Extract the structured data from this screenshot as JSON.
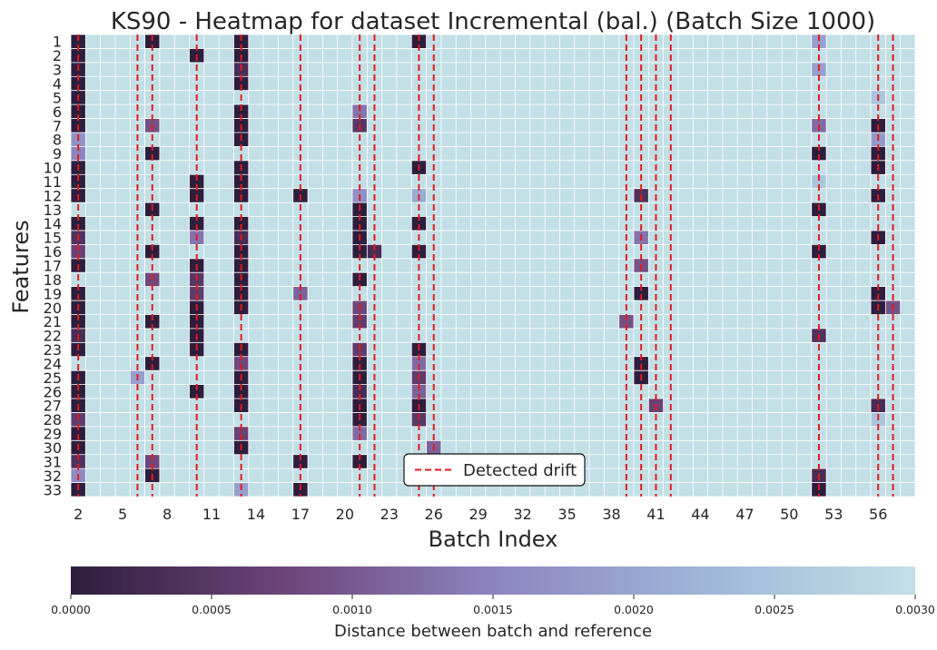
{
  "chart_data": {
    "type": "heatmap",
    "title": "KS90 - Heatmap for dataset Incremental (bal.) (Batch Size 1000)",
    "xlabel": "Batch Index",
    "ylabel": "Features",
    "x_start": 2,
    "x_end": 58,
    "x_ticks": [
      2,
      5,
      8,
      11,
      14,
      17,
      20,
      23,
      26,
      29,
      32,
      35,
      38,
      41,
      44,
      47,
      50,
      53,
      56
    ],
    "y_labels": [
      "1",
      "2",
      "3",
      "4",
      "5",
      "6",
      "7",
      "8",
      "9",
      "10",
      "11",
      "12",
      "13",
      "14",
      "15",
      "16",
      "17",
      "18",
      "19",
      "20",
      "21",
      "22",
      "23",
      "24",
      "25",
      "26",
      "27",
      "28",
      "29",
      "30",
      "31",
      "32",
      "33"
    ],
    "colorbar": {
      "label": "Distance between batch and reference",
      "range": [
        0,
        0.003
      ],
      "ticks": [
        "0.0000",
        "0.0005",
        "0.0010",
        "0.0015",
        "0.0020",
        "0.0025",
        "0.0030"
      ],
      "colors": [
        "#2d1e3e",
        "#6e4478",
        "#8c84c0",
        "#9eb6d8",
        "#c3dfe6"
      ]
    },
    "background_value": 0.003,
    "detected_drift_batches": [
      2,
      6,
      7,
      10,
      13,
      17,
      21,
      22,
      25,
      26,
      39,
      40,
      41,
      42,
      52,
      56,
      57
    ],
    "legend": {
      "label": "Detected drift",
      "position": "bottom-center",
      "color": "#e31a1c"
    },
    "cells": [
      {
        "feature": 1,
        "batch": 2,
        "value": 0.0
      },
      {
        "feature": 1,
        "batch": 7,
        "value": 0.0
      },
      {
        "feature": 1,
        "batch": 13,
        "value": 0.0
      },
      {
        "feature": 1,
        "batch": 25,
        "value": 0.0
      },
      {
        "feature": 1,
        "batch": 52,
        "value": 0.0019
      },
      {
        "feature": 2,
        "batch": 2,
        "value": 0.0
      },
      {
        "feature": 2,
        "batch": 10,
        "value": 0.0
      },
      {
        "feature": 2,
        "batch": 13,
        "value": 0.0
      },
      {
        "feature": 3,
        "batch": 2,
        "value": 0.0
      },
      {
        "feature": 3,
        "batch": 13,
        "value": 0.0003
      },
      {
        "feature": 3,
        "batch": 52,
        "value": 0.0019
      },
      {
        "feature": 4,
        "batch": 2,
        "value": 0.0
      },
      {
        "feature": 4,
        "batch": 13,
        "value": 0.0
      },
      {
        "feature": 5,
        "batch": 2,
        "value": 0.0
      },
      {
        "feature": 5,
        "batch": 56,
        "value": 0.0025
      },
      {
        "feature": 6,
        "batch": 2,
        "value": 0.0
      },
      {
        "feature": 6,
        "batch": 13,
        "value": 0.0
      },
      {
        "feature": 6,
        "batch": 21,
        "value": 0.0013
      },
      {
        "feature": 7,
        "batch": 2,
        "value": 0.0
      },
      {
        "feature": 7,
        "batch": 7,
        "value": 0.0009
      },
      {
        "feature": 7,
        "batch": 13,
        "value": 0.0
      },
      {
        "feature": 7,
        "batch": 21,
        "value": 0.0005
      },
      {
        "feature": 7,
        "batch": 52,
        "value": 0.0012
      },
      {
        "feature": 7,
        "batch": 56,
        "value": 0.0
      },
      {
        "feature": 8,
        "batch": 2,
        "value": 0.0017
      },
      {
        "feature": 8,
        "batch": 13,
        "value": 0.0
      },
      {
        "feature": 8,
        "batch": 56,
        "value": 0.0018
      },
      {
        "feature": 9,
        "batch": 2,
        "value": 0.0015
      },
      {
        "feature": 9,
        "batch": 7,
        "value": 0.0
      },
      {
        "feature": 9,
        "batch": 52,
        "value": 0.0
      },
      {
        "feature": 9,
        "batch": 56,
        "value": 0.0
      },
      {
        "feature": 10,
        "batch": 2,
        "value": 0.0
      },
      {
        "feature": 10,
        "batch": 13,
        "value": 0.0
      },
      {
        "feature": 10,
        "batch": 25,
        "value": 0.0
      },
      {
        "feature": 10,
        "batch": 56,
        "value": 0.0
      },
      {
        "feature": 11,
        "batch": 2,
        "value": 0.0
      },
      {
        "feature": 11,
        "batch": 10,
        "value": 0.0
      },
      {
        "feature": 11,
        "batch": 13,
        "value": 0.0
      },
      {
        "feature": 11,
        "batch": 52,
        "value": 0.0025
      },
      {
        "feature": 12,
        "batch": 2,
        "value": 0.0
      },
      {
        "feature": 12,
        "batch": 10,
        "value": 0.0
      },
      {
        "feature": 12,
        "batch": 13,
        "value": 0.0
      },
      {
        "feature": 12,
        "batch": 17,
        "value": 0.0
      },
      {
        "feature": 12,
        "batch": 21,
        "value": 0.0017
      },
      {
        "feature": 12,
        "batch": 25,
        "value": 0.0021
      },
      {
        "feature": 12,
        "batch": 40,
        "value": 0.0004
      },
      {
        "feature": 12,
        "batch": 56,
        "value": 0.0
      },
      {
        "feature": 13,
        "batch": 7,
        "value": 0.0
      },
      {
        "feature": 13,
        "batch": 21,
        "value": 0.0
      },
      {
        "feature": 13,
        "batch": 52,
        "value": 0.0
      },
      {
        "feature": 14,
        "batch": 2,
        "value": 0.0
      },
      {
        "feature": 14,
        "batch": 10,
        "value": 0.0
      },
      {
        "feature": 14,
        "batch": 13,
        "value": 0.0
      },
      {
        "feature": 14,
        "batch": 21,
        "value": 0.0
      },
      {
        "feature": 14,
        "batch": 25,
        "value": 0.0
      },
      {
        "feature": 15,
        "batch": 2,
        "value": 0.0004
      },
      {
        "feature": 15,
        "batch": 10,
        "value": 0.0013
      },
      {
        "feature": 15,
        "batch": 13,
        "value": 0.0003
      },
      {
        "feature": 15,
        "batch": 21,
        "value": 0.0
      },
      {
        "feature": 15,
        "batch": 40,
        "value": 0.0013
      },
      {
        "feature": 15,
        "batch": 56,
        "value": 0.0
      },
      {
        "feature": 16,
        "batch": 2,
        "value": 0.0007
      },
      {
        "feature": 16,
        "batch": 7,
        "value": 0.0
      },
      {
        "feature": 16,
        "batch": 13,
        "value": 0.0
      },
      {
        "feature": 16,
        "batch": 21,
        "value": 0.0
      },
      {
        "feature": 16,
        "batch": 22,
        "value": 0.0003
      },
      {
        "feature": 16,
        "batch": 25,
        "value": 0.0
      },
      {
        "feature": 16,
        "batch": 52,
        "value": 0.0
      },
      {
        "feature": 17,
        "batch": 2,
        "value": 0.0
      },
      {
        "feature": 17,
        "batch": 10,
        "value": 0.0
      },
      {
        "feature": 17,
        "batch": 13,
        "value": 0.0
      },
      {
        "feature": 17,
        "batch": 40,
        "value": 0.0009
      },
      {
        "feature": 18,
        "batch": 7,
        "value": 0.0008
      },
      {
        "feature": 18,
        "batch": 10,
        "value": 0.0005
      },
      {
        "feature": 18,
        "batch": 13,
        "value": 0.0
      },
      {
        "feature": 18,
        "batch": 21,
        "value": 0.0
      },
      {
        "feature": 19,
        "batch": 2,
        "value": 0.0
      },
      {
        "feature": 19,
        "batch": 10,
        "value": 0.0006
      },
      {
        "feature": 19,
        "batch": 13,
        "value": 0.0
      },
      {
        "feature": 19,
        "batch": 17,
        "value": 0.0011
      },
      {
        "feature": 19,
        "batch": 40,
        "value": 0.0
      },
      {
        "feature": 19,
        "batch": 56,
        "value": 0.0
      },
      {
        "feature": 20,
        "batch": 2,
        "value": 0.0
      },
      {
        "feature": 20,
        "batch": 10,
        "value": 0.0
      },
      {
        "feature": 20,
        "batch": 13,
        "value": 0.0
      },
      {
        "feature": 20,
        "batch": 21,
        "value": 0.0008
      },
      {
        "feature": 20,
        "batch": 56,
        "value": 0.0
      },
      {
        "feature": 20,
        "batch": 57,
        "value": 0.0009
      },
      {
        "feature": 21,
        "batch": 2,
        "value": 0.0
      },
      {
        "feature": 21,
        "batch": 7,
        "value": 0.0
      },
      {
        "feature": 21,
        "batch": 10,
        "value": 0.0
      },
      {
        "feature": 21,
        "batch": 21,
        "value": 0.0006
      },
      {
        "feature": 21,
        "batch": 39,
        "value": 0.0009
      },
      {
        "feature": 22,
        "batch": 2,
        "value": 0.0003
      },
      {
        "feature": 22,
        "batch": 10,
        "value": 0.0
      },
      {
        "feature": 22,
        "batch": 52,
        "value": 0.0004
      },
      {
        "feature": 23,
        "batch": 2,
        "value": 0.0
      },
      {
        "feature": 23,
        "batch": 10,
        "value": 0.0
      },
      {
        "feature": 23,
        "batch": 13,
        "value": 0.0
      },
      {
        "feature": 23,
        "batch": 21,
        "value": 0.0006
      },
      {
        "feature": 23,
        "batch": 25,
        "value": 0.0
      },
      {
        "feature": 24,
        "batch": 7,
        "value": 0.0
      },
      {
        "feature": 24,
        "batch": 13,
        "value": 0.0008
      },
      {
        "feature": 24,
        "batch": 21,
        "value": 0.0
      },
      {
        "feature": 24,
        "batch": 25,
        "value": 0.0012
      },
      {
        "feature": 24,
        "batch": 40,
        "value": 0.0
      },
      {
        "feature": 25,
        "batch": 2,
        "value": 0.0
      },
      {
        "feature": 25,
        "batch": 6,
        "value": 0.0019
      },
      {
        "feature": 25,
        "batch": 13,
        "value": 0.0
      },
      {
        "feature": 25,
        "batch": 21,
        "value": 0.0
      },
      {
        "feature": 25,
        "batch": 25,
        "value": 0.0006
      },
      {
        "feature": 25,
        "batch": 40,
        "value": 0.0
      },
      {
        "feature": 26,
        "batch": 2,
        "value": 0.0
      },
      {
        "feature": 26,
        "batch": 10,
        "value": 0.0
      },
      {
        "feature": 26,
        "batch": 13,
        "value": 0.0
      },
      {
        "feature": 26,
        "batch": 21,
        "value": 0.0003
      },
      {
        "feature": 26,
        "batch": 25,
        "value": 0.0011
      },
      {
        "feature": 27,
        "batch": 2,
        "value": 0.0
      },
      {
        "feature": 27,
        "batch": 13,
        "value": 0.0
      },
      {
        "feature": 27,
        "batch": 21,
        "value": 0.0
      },
      {
        "feature": 27,
        "batch": 25,
        "value": 0.0
      },
      {
        "feature": 27,
        "batch": 41,
        "value": 0.0007
      },
      {
        "feature": 27,
        "batch": 56,
        "value": 0.0003
      },
      {
        "feature": 28,
        "batch": 2,
        "value": 0.0006
      },
      {
        "feature": 28,
        "batch": 21,
        "value": 0.0
      },
      {
        "feature": 28,
        "batch": 25,
        "value": 0.0005
      },
      {
        "feature": 28,
        "batch": 56,
        "value": 0.0025
      },
      {
        "feature": 29,
        "batch": 2,
        "value": 0.0
      },
      {
        "feature": 29,
        "batch": 13,
        "value": 0.0007
      },
      {
        "feature": 29,
        "batch": 21,
        "value": 0.0012
      },
      {
        "feature": 30,
        "batch": 2,
        "value": 0.0
      },
      {
        "feature": 30,
        "batch": 13,
        "value": 0.0
      },
      {
        "feature": 30,
        "batch": 26,
        "value": 0.0011
      },
      {
        "feature": 31,
        "batch": 2,
        "value": 0.0004
      },
      {
        "feature": 31,
        "batch": 7,
        "value": 0.0008
      },
      {
        "feature": 31,
        "batch": 17,
        "value": 0.0
      },
      {
        "feature": 31,
        "batch": 21,
        "value": 0.0
      },
      {
        "feature": 32,
        "batch": 2,
        "value": 0.0016
      },
      {
        "feature": 32,
        "batch": 7,
        "value": 0.0
      },
      {
        "feature": 32,
        "batch": 25,
        "value": 0.0026
      },
      {
        "feature": 32,
        "batch": 52,
        "value": 0.0003
      },
      {
        "feature": 33,
        "batch": 2,
        "value": 0.0
      },
      {
        "feature": 33,
        "batch": 13,
        "value": 0.0019
      },
      {
        "feature": 33,
        "batch": 17,
        "value": 0.0
      },
      {
        "feature": 33,
        "batch": 52,
        "value": 0.0
      }
    ]
  }
}
